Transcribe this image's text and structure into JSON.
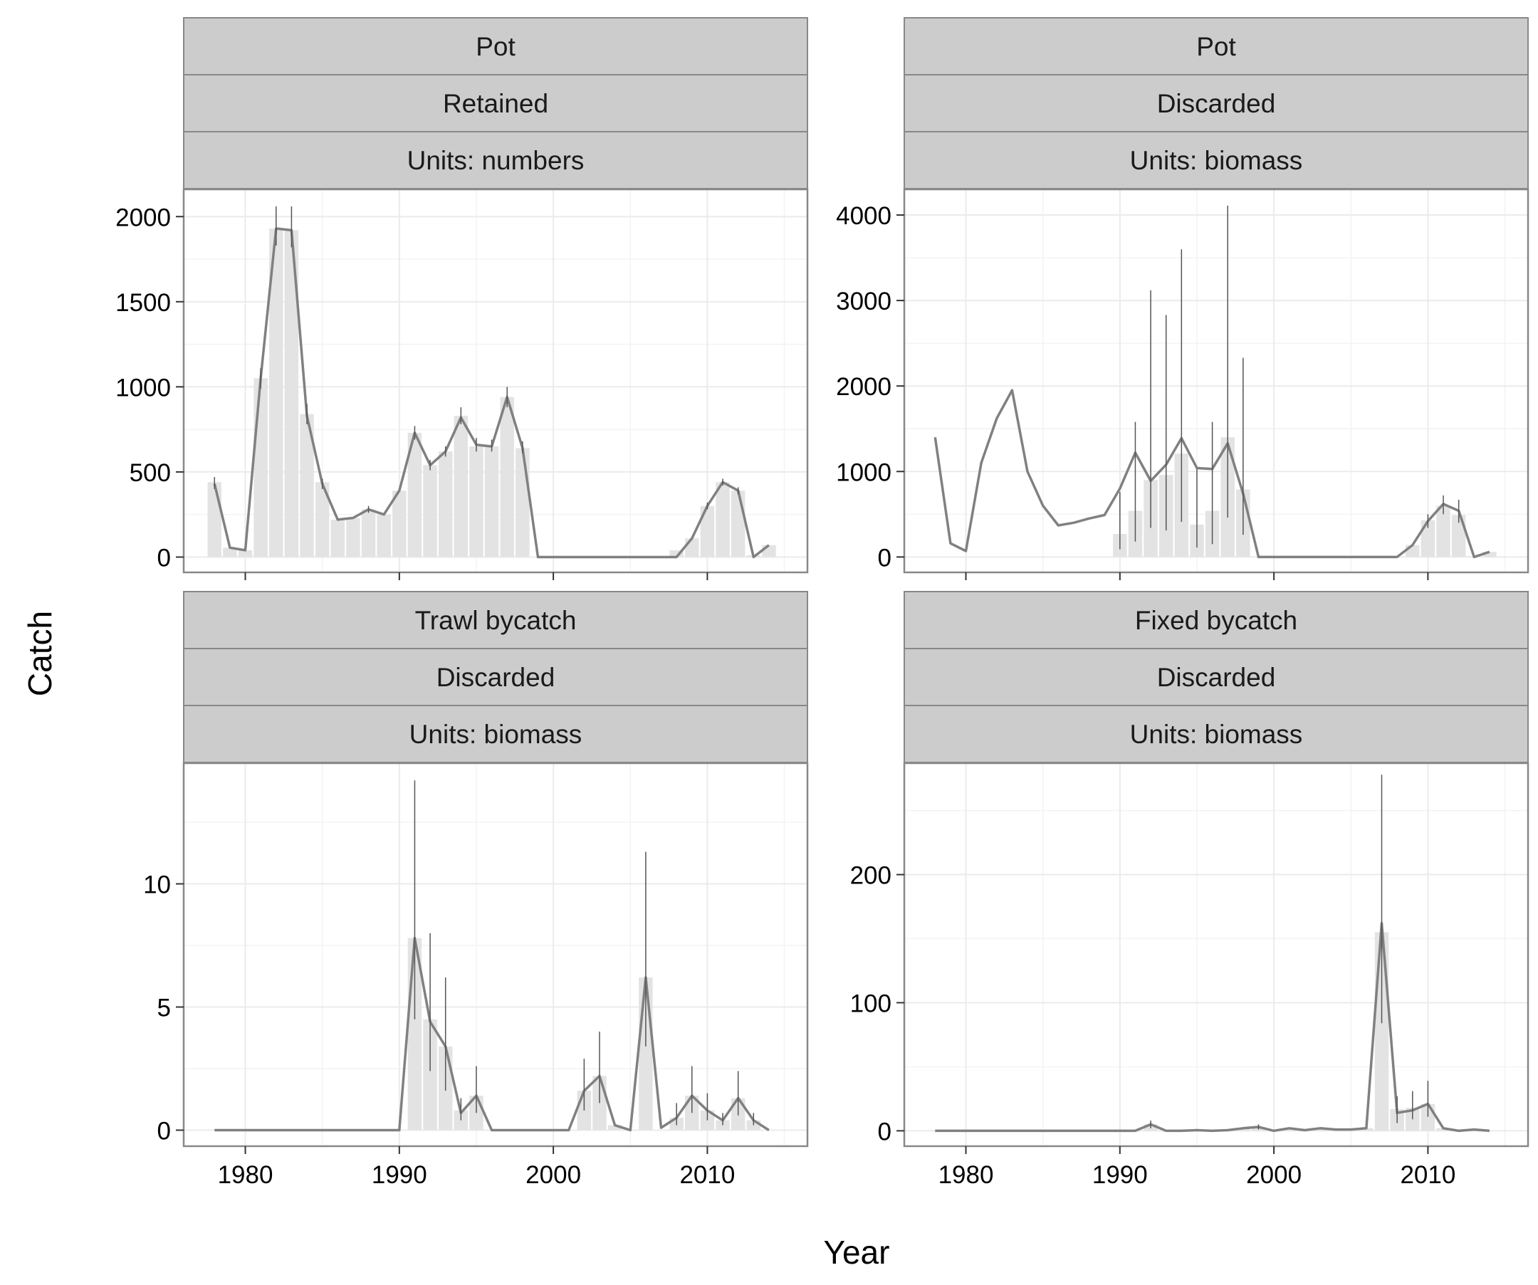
{
  "xlabel": "Year",
  "ylabel": "Catch",
  "colors": {
    "strip_fill": "#cccccc",
    "strip_border": "#888888",
    "panel_border": "#888888",
    "grid": "#ebebeb",
    "bar": "#e3e3e3",
    "line": "#808080",
    "errorbar": "#555555"
  },
  "chart_data": [
    {
      "type": "bar",
      "strips": [
        "Pot",
        "Retained",
        "Units: numbers"
      ],
      "xlim": [
        1976,
        2016.5
      ],
      "ylim": [
        -90,
        2160
      ],
      "xticks": [
        1980,
        1990,
        2000,
        2010
      ],
      "yticks": [
        0,
        500,
        1000,
        1500,
        2000
      ],
      "xtick_labels": [
        "",
        "",
        "",
        ""
      ],
      "ytick_labels": [
        "0",
        "500",
        "1000",
        "1500",
        "2000"
      ],
      "bars": {
        "x": [
          1978,
          1979,
          1980,
          1981,
          1982,
          1983,
          1984,
          1985,
          1986,
          1987,
          1988,
          1989,
          1990,
          1991,
          1992,
          1993,
          1994,
          1995,
          1996,
          1997,
          1998,
          2008,
          2009,
          2010,
          2011,
          2012,
          2013,
          2014
        ],
        "y": [
          440,
          55,
          40,
          1050,
          1930,
          1920,
          840,
          440,
          220,
          230,
          280,
          250,
          390,
          730,
          540,
          620,
          830,
          650,
          650,
          940,
          640,
          40,
          110,
          300,
          440,
          390,
          10,
          70
        ]
      },
      "line": {
        "x": [
          1978,
          1979,
          1980,
          1981,
          1982,
          1983,
          1984,
          1985,
          1986,
          1987,
          1988,
          1989,
          1990,
          1991,
          1992,
          1993,
          1994,
          1995,
          1996,
          1997,
          1998,
          1999,
          2000,
          2001,
          2002,
          2003,
          2004,
          2005,
          2006,
          2007,
          2008,
          2009,
          2010,
          2011,
          2012,
          2013,
          2014
        ],
        "y": [
          430,
          55,
          40,
          1050,
          1930,
          1920,
          830,
          430,
          220,
          230,
          280,
          250,
          390,
          730,
          540,
          620,
          820,
          660,
          650,
          940,
          640,
          0,
          0,
          0,
          0,
          0,
          0,
          0,
          0,
          0,
          0,
          110,
          300,
          440,
          390,
          0,
          70
        ]
      },
      "errorbars": [
        {
          "x": 1978,
          "low": 400,
          "high": 470
        },
        {
          "x": 1981,
          "low": 990,
          "high": 1110
        },
        {
          "x": 1982,
          "low": 1830,
          "high": 2060
        },
        {
          "x": 1983,
          "low": 1820,
          "high": 2060
        },
        {
          "x": 1984,
          "low": 780,
          "high": 900
        },
        {
          "x": 1985,
          "low": 400,
          "high": 460
        },
        {
          "x": 1988,
          "low": 260,
          "high": 300
        },
        {
          "x": 1991,
          "low": 690,
          "high": 770
        },
        {
          "x": 1992,
          "low": 510,
          "high": 570
        },
        {
          "x": 1993,
          "low": 590,
          "high": 650
        },
        {
          "x": 1994,
          "low": 780,
          "high": 880
        },
        {
          "x": 1995,
          "low": 620,
          "high": 700
        },
        {
          "x": 1996,
          "low": 620,
          "high": 690
        },
        {
          "x": 1997,
          "low": 880,
          "high": 1000
        },
        {
          "x": 1998,
          "low": 610,
          "high": 680
        },
        {
          "x": 2010,
          "low": 280,
          "high": 320
        },
        {
          "x": 2011,
          "low": 420,
          "high": 460
        },
        {
          "x": 2012,
          "low": 370,
          "high": 410
        }
      ]
    },
    {
      "type": "bar",
      "strips": [
        "Pot",
        "Discarded",
        "Units: biomass"
      ],
      "xlim": [
        1976,
        2016.5
      ],
      "ylim": [
        -180,
        4300
      ],
      "xticks": [
        1980,
        1990,
        2000,
        2010
      ],
      "yticks": [
        0,
        1000,
        2000,
        3000,
        4000
      ],
      "xtick_labels": [
        "",
        "",
        "",
        ""
      ],
      "ytick_labels": [
        "0",
        "1000",
        "2000",
        "3000",
        "4000"
      ],
      "bars": {
        "x": [
          1990,
          1991,
          1992,
          1993,
          1994,
          1995,
          1996,
          1997,
          1998,
          2009,
          2010,
          2011,
          2012,
          2013,
          2014
        ],
        "y": [
          270,
          540,
          900,
          960,
          1210,
          380,
          540,
          1400,
          790,
          140,
          430,
          600,
          490,
          10,
          60
        ]
      },
      "line": {
        "x": [
          1978,
          1979,
          1980,
          1981,
          1982,
          1983,
          1984,
          1985,
          1986,
          1987,
          1988,
          1989,
          1990,
          1991,
          1992,
          1993,
          1994,
          1995,
          1996,
          1997,
          1998,
          1999,
          2000,
          2001,
          2002,
          2003,
          2004,
          2005,
          2006,
          2007,
          2008,
          2009,
          2010,
          2011,
          2012,
          2013,
          2014
        ],
        "y": [
          1400,
          160,
          70,
          1100,
          1620,
          1950,
          1000,
          600,
          370,
          400,
          450,
          490,
          800,
          1220,
          890,
          1080,
          1390,
          1040,
          1030,
          1330,
          740,
          0,
          0,
          0,
          0,
          0,
          0,
          0,
          0,
          0,
          0,
          140,
          420,
          620,
          540,
          0,
          60
        ]
      },
      "errorbars": [
        {
          "x": 1990,
          "low": 90,
          "high": 760
        },
        {
          "x": 1991,
          "low": 180,
          "high": 1580
        },
        {
          "x": 1992,
          "low": 340,
          "high": 3120
        },
        {
          "x": 1993,
          "low": 310,
          "high": 2830
        },
        {
          "x": 1994,
          "low": 410,
          "high": 3600
        },
        {
          "x": 1995,
          "low": 110,
          "high": 1030
        },
        {
          "x": 1996,
          "low": 150,
          "high": 1580
        },
        {
          "x": 1997,
          "low": 460,
          "high": 4110
        },
        {
          "x": 1998,
          "low": 260,
          "high": 2330
        },
        {
          "x": 2010,
          "low": 340,
          "high": 500
        },
        {
          "x": 2011,
          "low": 500,
          "high": 720
        },
        {
          "x": 2012,
          "low": 400,
          "high": 670
        }
      ]
    },
    {
      "type": "bar",
      "strips": [
        "Trawl bycatch",
        "Discarded",
        "Units: biomass"
      ],
      "xlim": [
        1976,
        2016.5
      ],
      "ylim": [
        -0.65,
        14.9
      ],
      "xticks": [
        1980,
        1990,
        2000,
        2010
      ],
      "yticks": [
        0,
        5,
        10
      ],
      "xtick_labels": [
        "1980",
        "1990",
        "2000",
        "2010"
      ],
      "ytick_labels": [
        "0",
        "5",
        "10"
      ],
      "bars": {
        "x": [
          1991,
          1992,
          1993,
          1994,
          1995,
          2002,
          2003,
          2004,
          2006,
          2008,
          2009,
          2010,
          2011,
          2012,
          2013
        ],
        "y": [
          7.8,
          4.5,
          3.4,
          0.8,
          1.4,
          1.6,
          2.2,
          0.2,
          6.2,
          0.5,
          1.4,
          0.8,
          0.4,
          1.3,
          0.4
        ]
      },
      "line": {
        "x": [
          1978,
          1979,
          1980,
          1981,
          1982,
          1983,
          1984,
          1985,
          1986,
          1987,
          1988,
          1989,
          1990,
          1991,
          1992,
          1993,
          1994,
          1995,
          1996,
          1997,
          1998,
          1999,
          2000,
          2001,
          2002,
          2003,
          2004,
          2005,
          2006,
          2007,
          2008,
          2009,
          2010,
          2011,
          2012,
          2013,
          2014
        ],
        "y": [
          0,
          0,
          0,
          0,
          0,
          0,
          0,
          0,
          0,
          0,
          0,
          0,
          0,
          7.8,
          4.4,
          3.4,
          0.7,
          1.4,
          0,
          0,
          0,
          0,
          0,
          0,
          1.6,
          2.2,
          0.2,
          0,
          6.2,
          0.1,
          0.5,
          1.4,
          0.8,
          0.4,
          1.3,
          0.4,
          0
        ]
      },
      "errorbars": [
        {
          "x": 1991,
          "low": 4.5,
          "high": 14.2
        },
        {
          "x": 1992,
          "low": 2.4,
          "high": 8.0
        },
        {
          "x": 1993,
          "low": 1.6,
          "high": 6.2
        },
        {
          "x": 1994,
          "low": 0.4,
          "high": 1.3
        },
        {
          "x": 1995,
          "low": 0.7,
          "high": 2.6
        },
        {
          "x": 2002,
          "low": 0.8,
          "high": 2.9
        },
        {
          "x": 2003,
          "low": 1.1,
          "high": 4.0
        },
        {
          "x": 2006,
          "low": 3.4,
          "high": 11.3
        },
        {
          "x": 2008,
          "low": 0.2,
          "high": 1.1
        },
        {
          "x": 2009,
          "low": 0.7,
          "high": 2.6
        },
        {
          "x": 2010,
          "low": 0.4,
          "high": 1.5
        },
        {
          "x": 2011,
          "low": 0.2,
          "high": 0.7
        },
        {
          "x": 2012,
          "low": 0.6,
          "high": 2.4
        },
        {
          "x": 2013,
          "low": 0.2,
          "high": 0.7
        }
      ]
    },
    {
      "type": "bar",
      "strips": [
        "Fixed bycatch",
        "Discarded",
        "Units: biomass"
      ],
      "xlim": [
        1976,
        2016.5
      ],
      "ylim": [
        -12,
        287
      ],
      "xticks": [
        1980,
        1990,
        2000,
        2010
      ],
      "yticks": [
        0,
        100,
        200
      ],
      "xtick_labels": [
        "1980",
        "1990",
        "2000",
        "2010"
      ],
      "ytick_labels": [
        "0",
        "100",
        "200"
      ],
      "bars": {
        "x": [
          1992,
          1998,
          1999,
          2001,
          2003,
          2006,
          2007,
          2008,
          2009,
          2010,
          2011
        ],
        "y": [
          5,
          2,
          3,
          2,
          2,
          2,
          155,
          17,
          18,
          21,
          2
        ]
      },
      "line": {
        "x": [
          1978,
          1979,
          1980,
          1981,
          1982,
          1983,
          1984,
          1985,
          1986,
          1987,
          1988,
          1989,
          1990,
          1991,
          1992,
          1993,
          1994,
          1995,
          1996,
          1997,
          1998,
          1999,
          2000,
          2001,
          2002,
          2003,
          2004,
          2005,
          2006,
          2007,
          2008,
          2009,
          2010,
          2011,
          2012,
          2013,
          2014
        ],
        "y": [
          0,
          0,
          0,
          0,
          0,
          0,
          0,
          0,
          0,
          0,
          0,
          0,
          0,
          0,
          5,
          0,
          0,
          0.5,
          0,
          0.5,
          2,
          3,
          0,
          2,
          0.5,
          2,
          1,
          1,
          2,
          162,
          14,
          16,
          21,
          2,
          0,
          1,
          0
        ]
      },
      "errorbars": [
        {
          "x": 1992,
          "low": 2,
          "high": 8
        },
        {
          "x": 1999,
          "low": 1,
          "high": 5
        },
        {
          "x": 2007,
          "low": 84,
          "high": 278
        },
        {
          "x": 2008,
          "low": 6,
          "high": 27
        },
        {
          "x": 2009,
          "low": 9,
          "high": 31
        },
        {
          "x": 2010,
          "low": 11,
          "high": 39
        }
      ]
    }
  ]
}
